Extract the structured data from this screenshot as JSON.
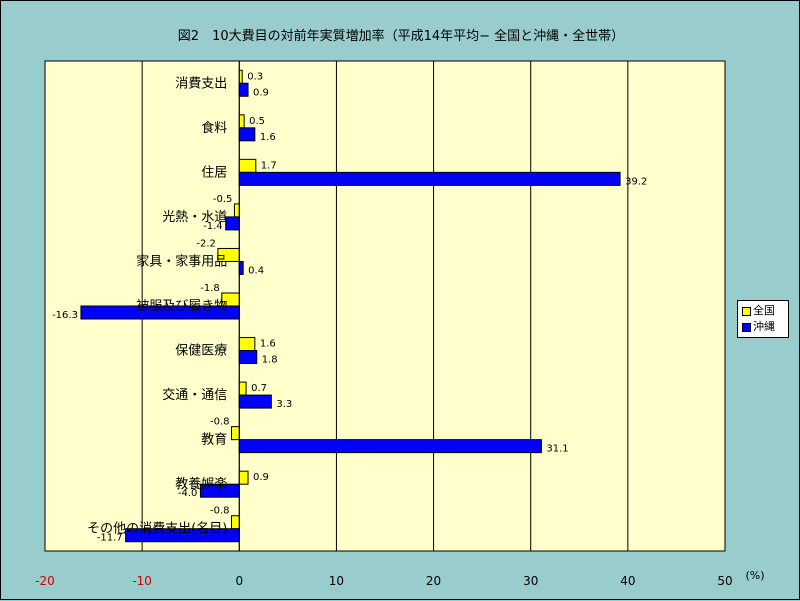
{
  "title": "図2　10大費目の対前年実質増加率（平成14年平均− 全国と沖縄・全世帯）",
  "legend": {
    "items": [
      {
        "label": "全国",
        "color": "#ffff00"
      },
      {
        "label": "沖縄",
        "color": "#0000ff"
      }
    ]
  },
  "colors": {
    "background": "#99cccc",
    "plot_background": "#ffffcc",
    "negative_tick": "#cc0000"
  },
  "chart_data": {
    "type": "bar",
    "orientation": "horizontal",
    "title": "図2　10大費目の対前年実質増加率（平成14年平均− 全国と沖縄・全世帯）",
    "categories": [
      "消費支出",
      "食料",
      "住居",
      "光熱・水道",
      "家具・家事用品",
      "被服及び履き物",
      "保健医療",
      "交通・通信",
      "教育",
      "教養娯楽",
      "その他の消費支出(名目)"
    ],
    "series": [
      {
        "name": "全国",
        "color": "#ffff00",
        "values": [
          0.3,
          0.5,
          1.7,
          -0.5,
          -2.2,
          -1.8,
          1.6,
          0.7,
          -0.8,
          0.9,
          -0.8
        ]
      },
      {
        "name": "沖縄",
        "color": "#0000ff",
        "values": [
          0.9,
          1.6,
          39.2,
          -1.4,
          0.4,
          -16.3,
          1.8,
          3.3,
          31.1,
          -4.0,
          -11.7
        ]
      }
    ],
    "data_labels": {
      "全国": [
        "0.3",
        "0.5",
        "1.7",
        "-0.5",
        "-2.2",
        "-1.8",
        "1.6",
        "0.7",
        "-0.8",
        "0.9",
        "-0.8"
      ],
      "沖縄": [
        "0.9",
        "1.6",
        "39.2",
        "-1.4",
        "0.4",
        "-16.3",
        "1.8",
        "3.3",
        "31.1",
        "-4.0",
        "-11.7"
      ]
    },
    "xlim": [
      -20,
      50
    ],
    "xticks": [
      -20,
      -10,
      0,
      10,
      20,
      30,
      40,
      50
    ],
    "xtick_labels": [
      "-20",
      "-10",
      "0",
      "10",
      "20",
      "30",
      "40",
      "50"
    ],
    "unit_label": "(%)",
    "grid": true,
    "legend_position": "right"
  }
}
